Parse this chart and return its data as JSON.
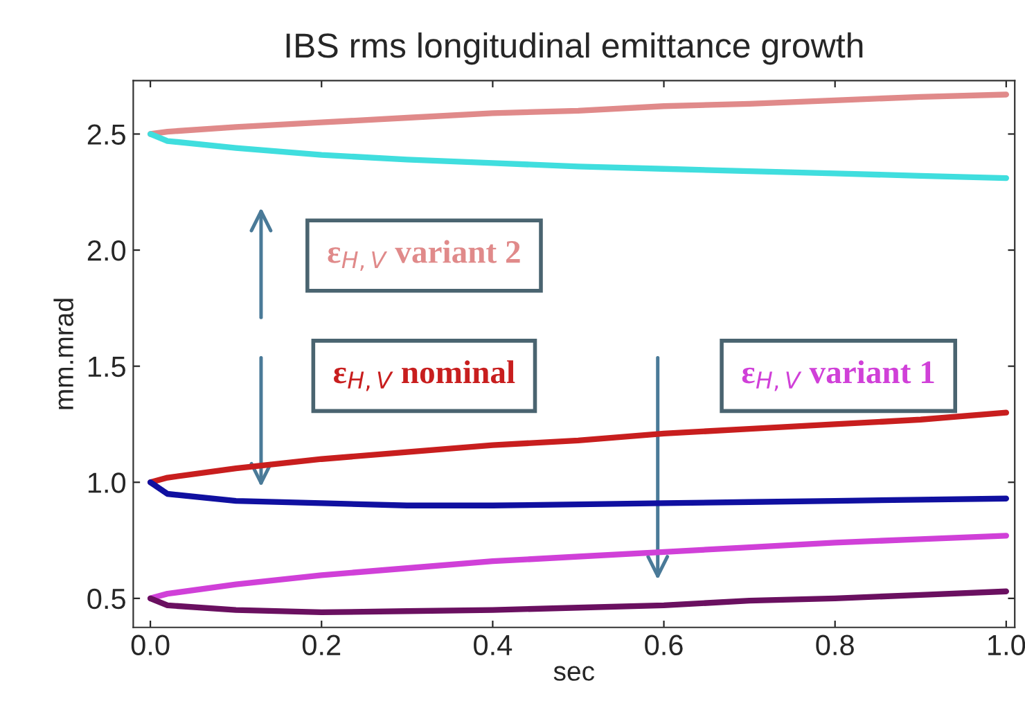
{
  "chart_data": {
    "type": "line",
    "title": "IBS rms longitudinal emittance growth",
    "xlabel": "sec",
    "ylabel": "mm.mrad",
    "x": [
      0,
      0.02,
      0.1,
      0.2,
      0.3,
      0.4,
      0.5,
      0.6,
      0.7,
      0.8,
      0.9,
      1.0
    ],
    "series": [
      {
        "color": "#e08a8a",
        "values": [
          2.5,
          2.51,
          2.53,
          2.55,
          2.57,
          2.59,
          2.6,
          2.62,
          2.63,
          2.645,
          2.66,
          2.67
        ]
      },
      {
        "color": "#40dede",
        "values": [
          2.5,
          2.47,
          2.44,
          2.41,
          2.39,
          2.375,
          2.36,
          2.35,
          2.34,
          2.33,
          2.32,
          2.31
        ]
      },
      {
        "color": "#c81e1e",
        "values": [
          1.0,
          1.02,
          1.06,
          1.1,
          1.13,
          1.16,
          1.18,
          1.21,
          1.23,
          1.25,
          1.27,
          1.3
        ]
      },
      {
        "color": "#1010a0",
        "values": [
          1.0,
          0.95,
          0.92,
          0.91,
          0.9,
          0.9,
          0.905,
          0.91,
          0.915,
          0.92,
          0.925,
          0.93
        ]
      },
      {
        "color": "#d040d8",
        "values": [
          0.5,
          0.52,
          0.56,
          0.6,
          0.63,
          0.66,
          0.68,
          0.7,
          0.72,
          0.74,
          0.755,
          0.77
        ]
      },
      {
        "color": "#6a1060",
        "values": [
          0.5,
          0.47,
          0.45,
          0.44,
          0.445,
          0.45,
          0.46,
          0.47,
          0.49,
          0.5,
          0.515,
          0.53
        ]
      }
    ],
    "xlim": [
      -0.02,
      1.01
    ],
    "ylim": [
      0.375,
      2.73
    ],
    "xticks": [
      {
        "value": 0,
        "label": "0.0"
      },
      {
        "value": 0.2,
        "label": "0.2"
      },
      {
        "value": 0.4,
        "label": "0.4"
      },
      {
        "value": 0.6,
        "label": "0.6"
      },
      {
        "value": 0.8,
        "label": "0.8"
      },
      {
        "value": 1.0,
        "label": "1.0"
      }
    ],
    "yticks": [
      {
        "value": 0.5,
        "label": "0.5"
      },
      {
        "value": 1.0,
        "label": "1.0"
      },
      {
        "value": 1.5,
        "label": "1.5"
      },
      {
        "value": 2.0,
        "label": "2.0"
      },
      {
        "value": 2.5,
        "label": "2.5"
      }
    ],
    "grid": false,
    "legend": false,
    "marker": "none",
    "line_style": "solid",
    "annotations": [
      "ε$_{H,V}$ variant 2",
      "ε$_{H,V}$ nominal",
      "ε$_{H,V}$ variant 1"
    ]
  }
}
